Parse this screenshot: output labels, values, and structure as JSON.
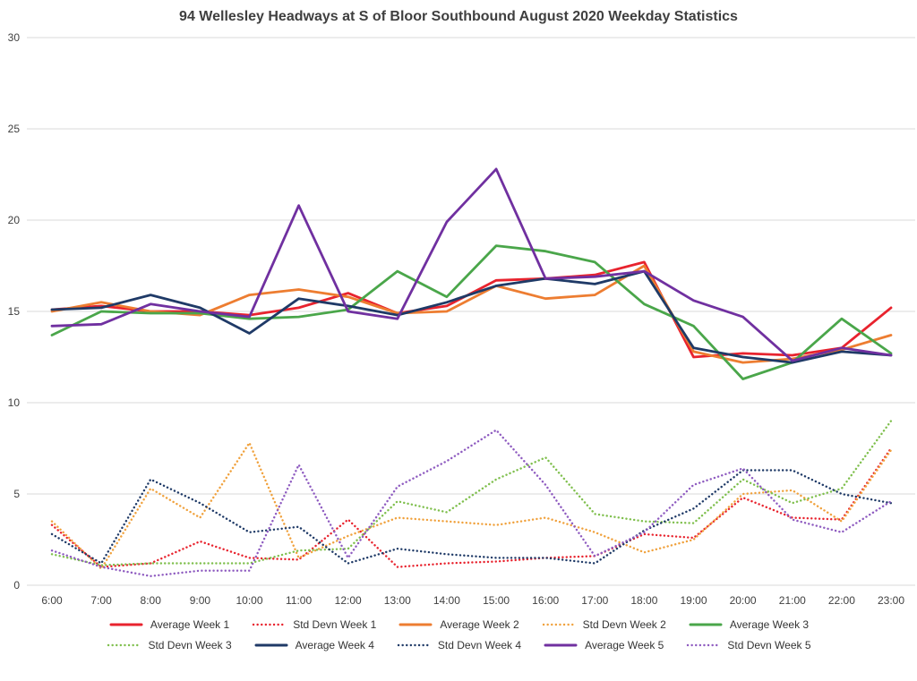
{
  "title": "94 Wellesley Headways at S of Bloor Southbound August 2020 Weekday Statistics",
  "chart_data": {
    "type": "line",
    "title": "94 Wellesley Headways at S of Bloor Southbound August 2020 Weekday Statistics",
    "xlabel": "",
    "ylabel": "",
    "ylim": [
      0,
      30
    ],
    "yticks": [
      0,
      5,
      10,
      15,
      20,
      25,
      30
    ],
    "grid": true,
    "legend_position": "bottom",
    "x": [
      "6:00",
      "7:00",
      "8:00",
      "9:00",
      "10:00",
      "11:00",
      "12:00",
      "13:00",
      "14:00",
      "15:00",
      "16:00",
      "17:00",
      "18:00",
      "19:00",
      "20:00",
      "21:00",
      "22:00",
      "23:00"
    ],
    "series": [
      {
        "name": "Average Week 1",
        "color": "#e8232e",
        "style": "solid",
        "values": [
          15.1,
          15.3,
          15.0,
          15.0,
          14.8,
          15.2,
          16.0,
          14.9,
          15.3,
          16.7,
          16.8,
          17.0,
          17.7,
          12.5,
          12.7,
          12.6,
          13.0,
          15.2
        ]
      },
      {
        "name": "Std Devn Week 1",
        "color": "#e8232e",
        "style": "dotted",
        "values": [
          3.3,
          1.0,
          1.2,
          2.4,
          1.5,
          1.4,
          3.6,
          1.0,
          1.2,
          1.3,
          1.5,
          1.6,
          2.8,
          2.6,
          4.8,
          3.7,
          3.6,
          7.5
        ]
      },
      {
        "name": "Average Week 2",
        "color": "#ed7d31",
        "style": "solid",
        "values": [
          15.0,
          15.5,
          15.0,
          14.8,
          15.9,
          16.2,
          15.8,
          14.9,
          15.0,
          16.4,
          15.7,
          15.9,
          17.5,
          12.8,
          12.2,
          12.4,
          12.9,
          13.7
        ]
      },
      {
        "name": "Std Devn Week 2",
        "color": "#f0a13c",
        "style": "dotted",
        "values": [
          3.5,
          0.9,
          5.3,
          3.7,
          7.8,
          1.5,
          2.7,
          3.7,
          3.5,
          3.3,
          3.7,
          2.9,
          1.8,
          2.5,
          5.0,
          5.2,
          3.5,
          7.4
        ]
      },
      {
        "name": "Average Week 3",
        "color": "#4aa64a",
        "style": "solid",
        "values": [
          13.7,
          15.0,
          14.9,
          14.9,
          14.6,
          14.7,
          15.1,
          17.2,
          15.8,
          18.6,
          18.3,
          17.7,
          15.4,
          14.2,
          11.3,
          12.2,
          14.6,
          12.7
        ]
      },
      {
        "name": "Std Devn Week 3",
        "color": "#7fbf4d",
        "style": "dotted",
        "values": [
          1.7,
          1.1,
          1.2,
          1.2,
          1.2,
          1.9,
          2.0,
          4.6,
          4.0,
          5.8,
          7.0,
          3.9,
          3.5,
          3.4,
          5.8,
          4.5,
          5.3,
          9.0
        ]
      },
      {
        "name": "Average Week 4",
        "color": "#1f3a67",
        "style": "solid",
        "values": [
          15.1,
          15.2,
          15.9,
          15.2,
          13.8,
          15.7,
          15.3,
          14.8,
          15.5,
          16.4,
          16.8,
          16.5,
          17.2,
          13.0,
          12.5,
          12.2,
          12.8,
          12.6
        ]
      },
      {
        "name": "Std Devn Week 4",
        "color": "#1f3a67",
        "style": "dotted",
        "values": [
          2.8,
          1.2,
          5.8,
          4.5,
          2.9,
          3.2,
          1.2,
          2.0,
          1.7,
          1.5,
          1.5,
          1.2,
          3.0,
          4.2,
          6.3,
          6.3,
          5.0,
          4.5
        ]
      },
      {
        "name": "Average Week 5",
        "color": "#7030a0",
        "style": "solid",
        "values": [
          14.2,
          14.3,
          15.4,
          15.0,
          14.7,
          20.8,
          15.0,
          14.6,
          19.9,
          22.8,
          16.8,
          16.9,
          17.2,
          15.6,
          14.7,
          12.3,
          13.0,
          12.6
        ]
      },
      {
        "name": "Std Devn Week 5",
        "color": "#8e5bc0",
        "style": "dotted",
        "values": [
          1.9,
          1.0,
          0.5,
          0.8,
          0.8,
          6.6,
          1.5,
          5.4,
          6.8,
          8.5,
          5.5,
          1.6,
          2.9,
          5.5,
          6.4,
          3.6,
          2.9,
          4.6
        ]
      }
    ],
    "legend_rows": [
      [
        0,
        1,
        2,
        3,
        4
      ],
      [
        5,
        6,
        7,
        8,
        9
      ]
    ],
    "grid_color": "#d9d9d9",
    "text_color": "#404040"
  }
}
